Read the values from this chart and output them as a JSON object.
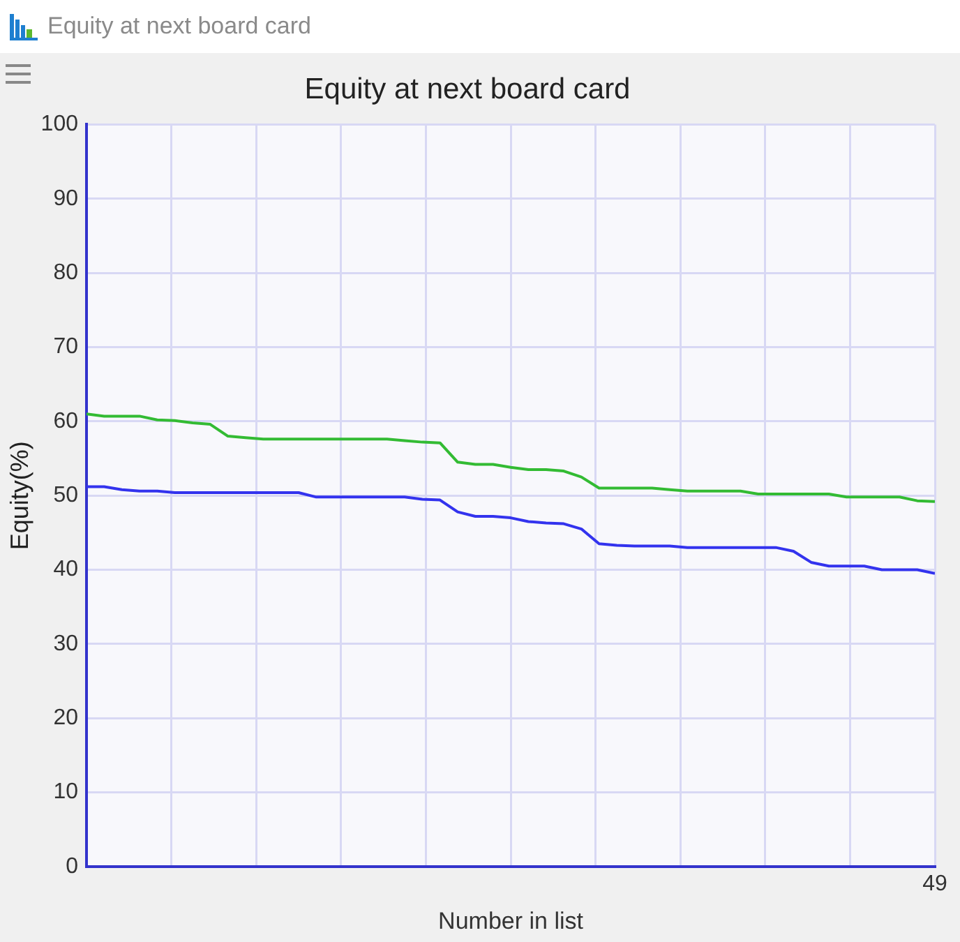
{
  "chart_data": {
    "type": "line",
    "title": "Equity at next board card",
    "xlabel": "Number in list",
    "ylabel": "Equity(%)",
    "categories": [
      null,
      null,
      null,
      null,
      null,
      null,
      null,
      null,
      null,
      null,
      null,
      null,
      null,
      null,
      null,
      null,
      null,
      null,
      null,
      null,
      null,
      null,
      null,
      null,
      null,
      null,
      null,
      null,
      null,
      null,
      null,
      null,
      null,
      null,
      null,
      null,
      null,
      null,
      null,
      null,
      null,
      null,
      null,
      null,
      null,
      null,
      null,
      null,
      "49"
    ],
    "series": [
      {
        "color": "#33bb33",
        "values": [
          61,
          60.7,
          60.7,
          60.7,
          60.2,
          60.1,
          59.8,
          59.6,
          58,
          57.8,
          57.6,
          57.6,
          57.6,
          57.6,
          57.6,
          57.6,
          57.6,
          57.6,
          57.4,
          57.2,
          57.1,
          54.5,
          54.2,
          54.2,
          53.8,
          53.5,
          53.5,
          53.3,
          52.5,
          51,
          51,
          51,
          51,
          50.8,
          50.6,
          50.6,
          50.6,
          50.6,
          50.2,
          50.2,
          50.2,
          50.2,
          50.2,
          49.8,
          49.8,
          49.8,
          49.8,
          49.3,
          49.2
        ]
      },
      {
        "color": "#3333ee",
        "values": [
          51.2,
          51.2,
          50.8,
          50.6,
          50.6,
          50.4,
          50.4,
          50.4,
          50.4,
          50.4,
          50.4,
          50.4,
          50.4,
          49.8,
          49.8,
          49.8,
          49.8,
          49.8,
          49.8,
          49.5,
          49.4,
          47.8,
          47.2,
          47.2,
          47,
          46.5,
          46.3,
          46.2,
          45.5,
          43.5,
          43.3,
          43.2,
          43.2,
          43.2,
          43,
          43,
          43,
          43,
          43,
          43,
          42.5,
          41,
          40.5,
          40.5,
          40.5,
          40,
          40,
          40,
          39.5
        ]
      }
    ],
    "ylim": [
      0,
      100
    ],
    "yticks": [
      0,
      10,
      20,
      30,
      40,
      50,
      60,
      70,
      80,
      90,
      100
    ],
    "grid": true,
    "marker": "none"
  }
}
